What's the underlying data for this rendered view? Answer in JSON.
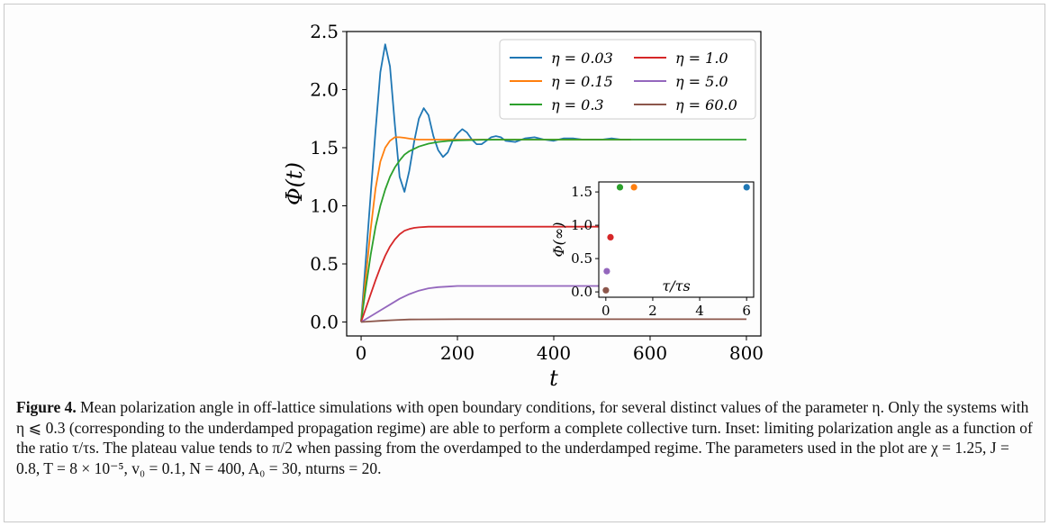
{
  "figure": {
    "caption_label": "Figure 4.",
    "caption_text": "Mean polarization angle in off-lattice simulations with open boundary conditions, for several distinct values of the parameter η. Only the systems with η ⩽ 0.3 (corresponding to the underdamped propagation regime) are able to perform a complete collective turn. Inset: limiting polarization angle as a function of the ratio τ/τs. The plateau value tends to π/2 when passing from the overdamped to the underdamped regime. The parameters used in the plot are χ = 1.25, J = 0.8, T = 8 × 10⁻⁵, v₀ = 0.1, N = 400, A₀ = 30, nturns = 20."
  },
  "chart_data": [
    {
      "type": "line",
      "xlabel": "t",
      "ylabel": "Φ(t)",
      "xlim": [
        -30,
        830
      ],
      "ylim": [
        -0.12,
        2.5
      ],
      "xticks": [
        0,
        200,
        400,
        600,
        800
      ],
      "xtick_labels": [
        "0",
        "200",
        "400",
        "600",
        "800"
      ],
      "yticks": [
        0.0,
        0.5,
        1.0,
        1.5,
        2.0,
        2.5
      ],
      "ytick_labels": [
        "0.0",
        "0.5",
        "1.0",
        "1.5",
        "2.0",
        "2.5"
      ],
      "legend_position": "top-right",
      "grid": false,
      "series": [
        {
          "name": "η = 0.03",
          "color": "#1f77b4",
          "x": [
            0,
            10,
            20,
            30,
            40,
            50,
            60,
            70,
            80,
            90,
            100,
            110,
            120,
            130,
            140,
            150,
            160,
            170,
            180,
            190,
            200,
            210,
            220,
            230,
            240,
            250,
            260,
            270,
            280,
            290,
            300,
            320,
            340,
            360,
            380,
            400,
            420,
            440,
            460,
            480,
            500,
            520,
            540,
            560
          ],
          "y": [
            0.0,
            0.55,
            1.1,
            1.65,
            2.15,
            2.39,
            2.2,
            1.7,
            1.25,
            1.12,
            1.3,
            1.55,
            1.75,
            1.84,
            1.78,
            1.6,
            1.48,
            1.42,
            1.46,
            1.56,
            1.62,
            1.66,
            1.63,
            1.57,
            1.53,
            1.53,
            1.56,
            1.59,
            1.6,
            1.59,
            1.56,
            1.55,
            1.58,
            1.59,
            1.57,
            1.56,
            1.58,
            1.58,
            1.57,
            1.57,
            1.57,
            1.58,
            1.57,
            1.57
          ]
        },
        {
          "name": "η = 0.15",
          "color": "#ff7f0e",
          "x": [
            0,
            10,
            20,
            30,
            40,
            50,
            60,
            70,
            80,
            90,
            100,
            110,
            120,
            140,
            160,
            200,
            300,
            400,
            500,
            560
          ],
          "y": [
            0.0,
            0.4,
            0.8,
            1.15,
            1.38,
            1.5,
            1.56,
            1.59,
            1.59,
            1.585,
            1.578,
            1.573,
            1.57,
            1.57,
            1.57,
            1.57,
            1.57,
            1.57,
            1.57,
            1.57
          ]
        },
        {
          "name": "η = 0.3",
          "color": "#2ca02c",
          "x": [
            0,
            10,
            20,
            30,
            40,
            50,
            60,
            70,
            80,
            90,
            100,
            120,
            140,
            160,
            180,
            200,
            250,
            300,
            350,
            400,
            500,
            600,
            700,
            800
          ],
          "y": [
            0.0,
            0.3,
            0.58,
            0.82,
            1.0,
            1.14,
            1.25,
            1.33,
            1.39,
            1.44,
            1.47,
            1.51,
            1.535,
            1.55,
            1.558,
            1.563,
            1.568,
            1.57,
            1.57,
            1.57,
            1.57,
            1.57,
            1.57,
            1.57
          ]
        },
        {
          "name": "η = 1.0",
          "color": "#d62728",
          "x": [
            0,
            10,
            20,
            30,
            40,
            50,
            60,
            70,
            80,
            90,
            100,
            110,
            120,
            140,
            160,
            200,
            300,
            400,
            500,
            600,
            700,
            800
          ],
          "y": [
            0.0,
            0.12,
            0.24,
            0.36,
            0.47,
            0.57,
            0.65,
            0.71,
            0.755,
            0.785,
            0.8,
            0.81,
            0.815,
            0.82,
            0.82,
            0.82,
            0.82,
            0.82,
            0.82,
            0.82,
            0.82,
            0.82
          ]
        },
        {
          "name": "η = 5.0",
          "color": "#9467bd",
          "x": [
            0,
            20,
            40,
            60,
            80,
            100,
            120,
            140,
            160,
            180,
            200,
            250,
            300,
            400,
            500,
            600,
            700,
            800
          ],
          "y": [
            0.0,
            0.05,
            0.1,
            0.15,
            0.2,
            0.24,
            0.27,
            0.29,
            0.3,
            0.305,
            0.31,
            0.31,
            0.31,
            0.31,
            0.31,
            0.31,
            0.31,
            0.31
          ]
        },
        {
          "name": "η = 60.0",
          "color": "#8c564b",
          "x": [
            0,
            20,
            40,
            60,
            80,
            100,
            120,
            200,
            400,
            600,
            800
          ],
          "y": [
            0.0,
            0.005,
            0.01,
            0.015,
            0.019,
            0.022,
            0.023,
            0.024,
            0.024,
            0.024,
            0.024
          ]
        }
      ]
    },
    {
      "type": "scatter",
      "xlabel": "τ/τs",
      "ylabel": "Φ(∞)",
      "xlim": [
        -0.3,
        6.3
      ],
      "ylim": [
        -0.08,
        1.65
      ],
      "xticks": [
        0,
        2,
        4,
        6
      ],
      "xtick_labels": [
        "0",
        "2",
        "4",
        "6"
      ],
      "yticks": [
        0.0,
        0.5,
        1.0,
        1.5
      ],
      "ytick_labels": [
        "0.0",
        "0.5",
        "1.0",
        "1.5"
      ],
      "points": [
        {
          "x": 6.0,
          "y": 1.57,
          "color": "#1f77b4"
        },
        {
          "x": 1.2,
          "y": 1.57,
          "color": "#ff7f0e"
        },
        {
          "x": 0.6,
          "y": 1.57,
          "color": "#2ca02c"
        },
        {
          "x": 0.2,
          "y": 0.82,
          "color": "#d62728"
        },
        {
          "x": 0.04,
          "y": 0.31,
          "color": "#9467bd"
        },
        {
          "x": 0.003,
          "y": 0.024,
          "color": "#8c564b"
        }
      ]
    }
  ]
}
